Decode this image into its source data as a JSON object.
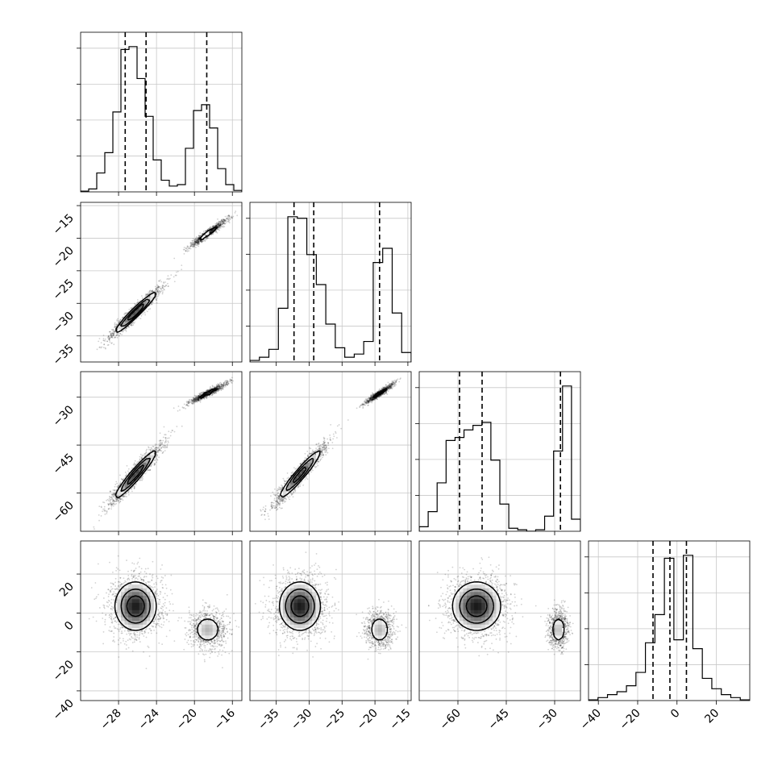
{
  "chart_data": {
    "type": "corner",
    "grid": true,
    "n_params": 4,
    "params": [
      {
        "range": [
          -32,
          -15
        ],
        "ticks": [
          -28,
          -24,
          -20,
          -16
        ],
        "tick_labels": [
          "−28",
          "−24",
          "−20",
          "−16"
        ],
        "quantiles": [
          -27.3,
          -25.1,
          -18.7
        ],
        "histogram": [
          0.005,
          0.02,
          0.13,
          0.27,
          0.55,
          0.98,
          1.0,
          0.78,
          0.52,
          0.22,
          0.08,
          0.04,
          0.05,
          0.3,
          0.56,
          0.6,
          0.44,
          0.16,
          0.05,
          0.01
        ]
      },
      {
        "range": [
          -39,
          -14.5
        ],
        "ticks": [
          -35,
          -30,
          -25,
          -20,
          -15
        ],
        "tick_labels": [
          "−35",
          "−30",
          "−25",
          "−20",
          "−15"
        ],
        "quantiles": [
          -32.3,
          -29.3,
          -19.3
        ],
        "histogram": [
          0.01,
          0.03,
          0.08,
          0.34,
          0.92,
          0.91,
          0.68,
          0.49,
          0.24,
          0.09,
          0.03,
          0.05,
          0.13,
          0.63,
          0.72,
          0.31,
          0.06
        ]
      },
      {
        "range": [
          -72,
          -22
        ],
        "ticks": [
          -60,
          -45,
          -30
        ],
        "tick_labels": [
          "−60",
          "−45",
          "−30"
        ],
        "quantiles": [
          -59.5,
          -52.5,
          -28.2
        ],
        "histogram": [
          0.03,
          0.13,
          0.32,
          0.6,
          0.62,
          0.67,
          0.7,
          0.72,
          0.47,
          0.18,
          0.02,
          0.01,
          0.0,
          0.01,
          0.1,
          0.53,
          0.96,
          0.08
        ]
      },
      {
        "range": [
          -45,
          37
        ],
        "ticks": [
          -40,
          -20,
          0,
          20
        ],
        "tick_labels": [
          "−40",
          "−20",
          "0",
          "20"
        ],
        "quantiles": [
          -12.2,
          -3.6,
          4.8
        ],
        "histogram": [
          0.005,
          0.02,
          0.04,
          0.06,
          0.1,
          0.19,
          0.39,
          0.58,
          0.96,
          0.41,
          0.98,
          0.35,
          0.15,
          0.08,
          0.04,
          0.02,
          0.005
        ]
      }
    ],
    "modes": [
      {
        "weight": 0.65,
        "center": [
          -26.2,
          -31.4,
          -54.2,
          3.5
        ],
        "sd": [
          1.4,
          2.0,
          4.8,
          8.0
        ]
      },
      {
        "weight": 0.35,
        "center": [
          -18.6,
          -19.3,
          -28.8,
          -8.5
        ],
        "sd": [
          1.0,
          1.1,
          1.6,
          5.0
        ]
      }
    ],
    "correlation_pairs": [
      {
        "row": 1,
        "col": 0,
        "value": 0.96
      },
      {
        "row": 2,
        "col": 0,
        "value": 0.95
      },
      {
        "row": 2,
        "col": 1,
        "value": 0.95
      },
      {
        "row": 3,
        "col": 0,
        "value": 0.0
      },
      {
        "row": 3,
        "col": 1,
        "value": 0.0
      },
      {
        "row": 3,
        "col": 2,
        "value": 0.0
      }
    ],
    "contour_levels": [
      0.3,
      0.55,
      0.8
    ]
  }
}
